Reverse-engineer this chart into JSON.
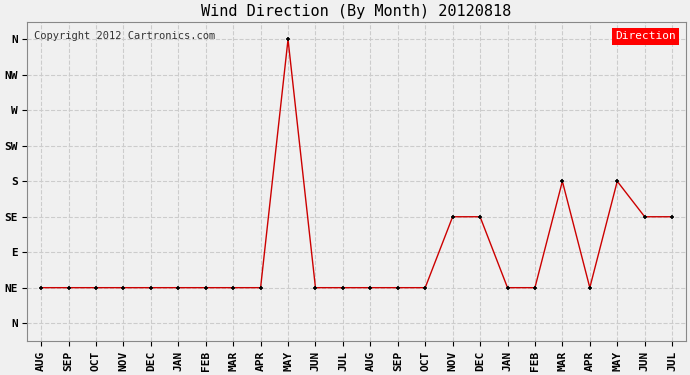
{
  "title": "Wind Direction (By Month) 20120818",
  "copyright": "Copyright 2012 Cartronics.com",
  "legend_label": "Direction",
  "legend_bg": "#ff0000",
  "legend_fg": "#ffffff",
  "x_labels": [
    "AUG",
    "SEP",
    "OCT",
    "NOV",
    "DEC",
    "JAN",
    "FEB",
    "MAR",
    "APR",
    "MAY",
    "JUN",
    "JUL",
    "AUG",
    "SEP",
    "OCT",
    "NOV",
    "DEC",
    "JAN",
    "FEB",
    "MAR",
    "APR",
    "MAY",
    "JUN",
    "JUL"
  ],
  "y_labels": [
    "N",
    "NW",
    "W",
    "SW",
    "S",
    "SE",
    "E",
    "NE",
    "N"
  ],
  "data_points": [
    7,
    7,
    7,
    7,
    7,
    7,
    7,
    7,
    7,
    0,
    7,
    7,
    7,
    7,
    7,
    5,
    5,
    7,
    7,
    4,
    7,
    4,
    5,
    5
  ],
  "line_color": "#cc0000",
  "marker_color": "#000000",
  "grid_color": "#cccccc",
  "bg_color": "#f0f0f0",
  "plot_bg": "#f0f0f0",
  "title_fontsize": 11,
  "tick_fontsize": 8,
  "copyright_fontsize": 7.5
}
